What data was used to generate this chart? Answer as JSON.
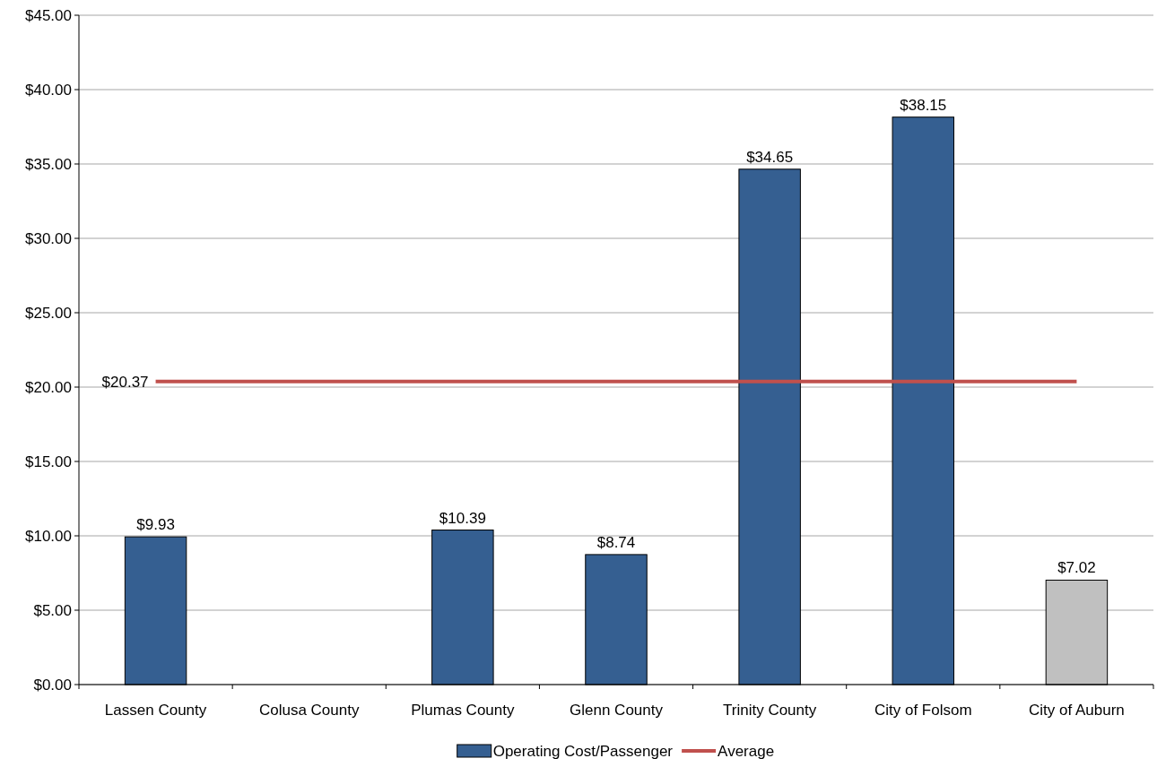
{
  "chart_data": {
    "type": "bar",
    "categories": [
      "Lassen County",
      "Colusa County",
      "Plumas County",
      "Glenn County",
      "Trinity County",
      "City of Folsom",
      "City of Auburn"
    ],
    "series": [
      {
        "name": "Operating Cost/Passenger",
        "color": "#355f91",
        "colors": [
          "#355f91",
          "#355f91",
          "#355f91",
          "#355f91",
          "#355f91",
          "#355f91",
          "#c0c0c0"
        ],
        "values": [
          9.93,
          null,
          10.39,
          8.74,
          34.65,
          38.15,
          7.02
        ],
        "value_labels": [
          "$9.93",
          null,
          "$10.39",
          "$8.74",
          "$34.65",
          "$38.15",
          "$7.02"
        ]
      },
      {
        "name": "Average",
        "type": "line",
        "color": "#c0504d",
        "values": [
          20.37,
          20.37,
          20.37,
          20.37,
          20.37,
          20.37,
          20.37
        ],
        "value_labels": [
          "$20.37",
          null,
          null,
          null,
          null,
          null,
          null
        ]
      }
    ],
    "ylim": [
      0,
      45
    ],
    "yticks": [
      {
        "value": 0,
        "label": "$0.00"
      },
      {
        "value": 5,
        "label": "$5.00"
      },
      {
        "value": 10,
        "label": "$10.00"
      },
      {
        "value": 15,
        "label": "$15.00"
      },
      {
        "value": 20,
        "label": "$20.00"
      },
      {
        "value": 25,
        "label": "$25.00"
      },
      {
        "value": 30,
        "label": "$30.00"
      },
      {
        "value": 35,
        "label": "$35.00"
      },
      {
        "value": 40,
        "label": "$40.00"
      },
      {
        "value": 45,
        "label": "$45.00"
      }
    ],
    "grid": "y",
    "legend": "bottom"
  }
}
